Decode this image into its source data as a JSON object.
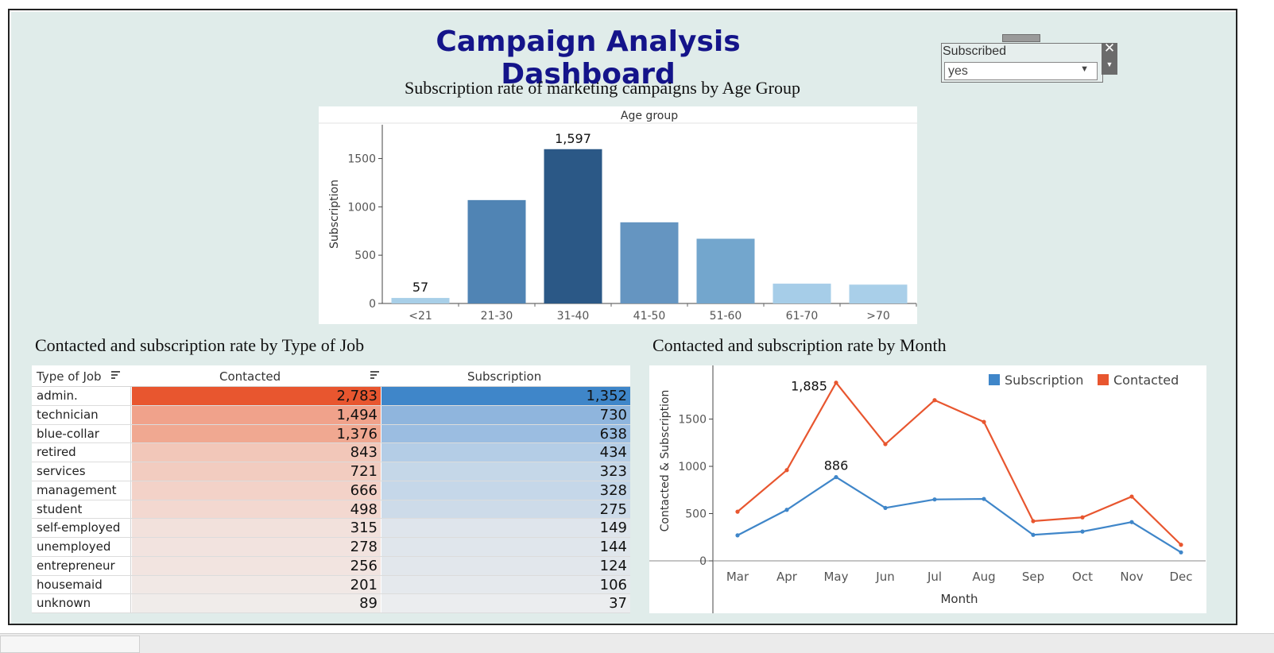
{
  "dashboard": {
    "title": "Campaign Analysis Dashboard"
  },
  "filter": {
    "label": "Subscribed",
    "value": "yes",
    "close_icon": "close-icon",
    "dropdown_icon": "caret-down-icon"
  },
  "colors": {
    "background": "#e0ecea",
    "contacted": "#e8562f",
    "subscription": "#3f86c9",
    "title": "#14148a"
  },
  "chart_data": [
    {
      "type": "bar",
      "title": "Subscription rate of marketing campaigns by Age Group",
      "header": "Age group",
      "ylabel": "Subscription",
      "xlabel": "",
      "categories": [
        "<21",
        "21-30",
        "31-40",
        "41-50",
        "51-60",
        "61-70",
        ">70"
      ],
      "values": [
        57,
        1070,
        1597,
        840,
        670,
        205,
        195
      ],
      "data_labels": {
        "0": "57",
        "2": "1,597"
      },
      "ylim": [
        0,
        1850
      ],
      "yticks": [
        0,
        500,
        1000,
        1500
      ],
      "bar_colors": [
        "#a8cfe8",
        "#5084b4",
        "#2b5886",
        "#6595c1",
        "#73a6cd",
        "#a6cde8",
        "#a9cfe9"
      ],
      "grid": false
    },
    {
      "type": "table",
      "title": "Contacted and subscription rate by Type of Job",
      "columns": [
        "Type of Job",
        "Contacted",
        "Subscription"
      ],
      "rows": [
        {
          "job": "admin.",
          "contacted": "2,783",
          "subscription": "1,352"
        },
        {
          "job": "technician",
          "contacted": "1,494",
          "subscription": "730"
        },
        {
          "job": "blue-collar",
          "contacted": "1,376",
          "subscription": "638"
        },
        {
          "job": "retired",
          "contacted": "843",
          "subscription": "434"
        },
        {
          "job": "services",
          "contacted": "721",
          "subscription": "323"
        },
        {
          "job": "management",
          "contacted": "666",
          "subscription": "328"
        },
        {
          "job": "student",
          "contacted": "498",
          "subscription": "275"
        },
        {
          "job": "self-employed",
          "contacted": "315",
          "subscription": "149"
        },
        {
          "job": "unemployed",
          "contacted": "278",
          "subscription": "144"
        },
        {
          "job": "entrepreneur",
          "contacted": "256",
          "subscription": "124"
        },
        {
          "job": "housemaid",
          "contacted": "201",
          "subscription": "106"
        },
        {
          "job": "unknown",
          "contacted": "89",
          "subscription": "37"
        }
      ],
      "contacted_colors": [
        "#e8562f",
        "#f0a28b",
        "#f0a891",
        "#f2c7b9",
        "#f2ccc0",
        "#f3d2c8",
        "#f3d8d0",
        "#f2e1dc",
        "#f2e3df",
        "#f2e4e0",
        "#f1e8e5",
        "#f0ecea"
      ],
      "subscription_colors": [
        "#3f86c9",
        "#8fb5dd",
        "#9bbde1",
        "#b4cde6",
        "#c5d7e8",
        "#c5d7e9",
        "#cddbe9",
        "#dfe5ec",
        "#e0e6ec",
        "#e2e7ec",
        "#e5e9ed",
        "#ebedef"
      ]
    },
    {
      "type": "line",
      "title": "Contacted and subscription rate by Month",
      "xlabel": "Month",
      "ylabel": "Contacted & Subscription",
      "x": [
        "Mar",
        "Apr",
        "May",
        "Jun",
        "Jul",
        "Aug",
        "Sep",
        "Oct",
        "Nov",
        "Dec"
      ],
      "series": [
        {
          "name": "Subscription",
          "color": "#3f86c9",
          "values": [
            270,
            540,
            886,
            560,
            650,
            655,
            275,
            310,
            410,
            90
          ]
        },
        {
          "name": "Contacted",
          "color": "#e8562f",
          "values": [
            520,
            960,
            1885,
            1235,
            1700,
            1470,
            420,
            460,
            680,
            170
          ]
        }
      ],
      "data_labels": [
        {
          "series": "Contacted",
          "index": 2,
          "text": "1,885"
        },
        {
          "series": "Subscription",
          "index": 2,
          "text": "886"
        }
      ],
      "ylim": [
        0,
        1950
      ],
      "yticks": [
        0,
        500,
        1000,
        1500
      ],
      "legend": "top-right",
      "grid": false
    }
  ]
}
